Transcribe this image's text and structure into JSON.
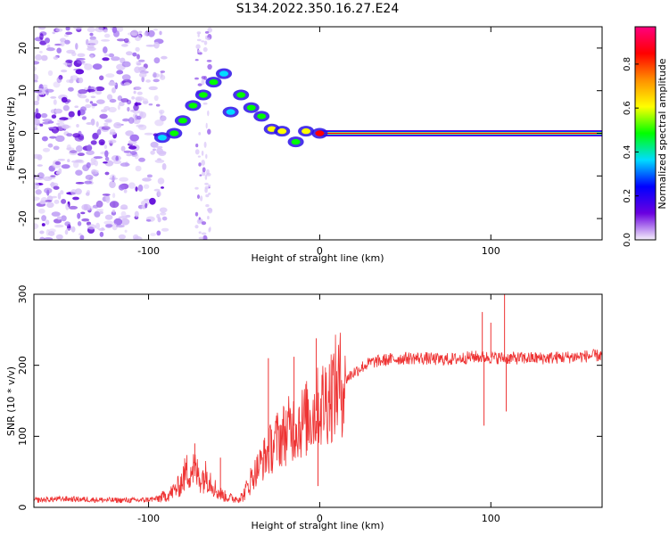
{
  "title": "S134.2022.350.16.27.E24",
  "chart_data": [
    {
      "type": "heatmap",
      "xlabel": "Height of straight line (km)",
      "ylabel": "Frequency (Hz)",
      "xlim": [
        -167,
        165
      ],
      "ylim": [
        -25,
        25
      ],
      "x_ticks": [
        -100,
        0,
        100
      ],
      "x_tick_labels": [
        "-100",
        "0",
        "100"
      ],
      "y_ticks": [
        20,
        10,
        0,
        -10,
        -20
      ],
      "y_tick_labels": [
        "20",
        "10",
        "0",
        "-10",
        "-20"
      ],
      "colorbar": {
        "label": "Normalized spectral amplitude",
        "range": [
          0,
          0.97
        ],
        "ticks": [
          0.0,
          0.2,
          0.4,
          0.6,
          0.8
        ],
        "tick_labels": [
          "0.0",
          "0.2",
          "0.4",
          "0.6",
          "0.8"
        ],
        "colormap": [
          "#f5f0fb",
          "#6a00e0",
          "#0000ff",
          "#00dcff",
          "#00ff00",
          "#ffff00",
          "#ff9000",
          "#ff0000",
          "#ff007f"
        ]
      },
      "features": {
        "noise_region": {
          "x": [
            -167,
            -90
          ],
          "freq": [
            -25,
            25
          ],
          "amplitude": 0.15
        },
        "noise_strip": {
          "x": [
            -72,
            -64
          ],
          "freq": [
            -25,
            25
          ],
          "amplitude": 0.1
        },
        "ridge": [
          {
            "x": -92,
            "freq": -1.0,
            "amplitude": 0.35
          },
          {
            "x": -85,
            "freq": 0.0,
            "amplitude": 0.45
          },
          {
            "x": -80,
            "freq": 3.0,
            "amplitude": 0.45
          },
          {
            "x": -74,
            "freq": 6.5,
            "amplitude": 0.5
          },
          {
            "x": -68,
            "freq": 9.0,
            "amplitude": 0.45
          },
          {
            "x": -62,
            "freq": 12.0,
            "amplitude": 0.5
          },
          {
            "x": -56,
            "freq": 14.0,
            "amplitude": 0.35
          },
          {
            "x": -52,
            "freq": 5.0,
            "amplitude": 0.35
          },
          {
            "x": -46,
            "freq": 9.0,
            "amplitude": 0.45
          },
          {
            "x": -40,
            "freq": 6.0,
            "amplitude": 0.5
          },
          {
            "x": -34,
            "freq": 4.0,
            "amplitude": 0.5
          },
          {
            "x": -28,
            "freq": 1.0,
            "amplitude": 0.6
          },
          {
            "x": -22,
            "freq": 0.5,
            "amplitude": 0.55
          },
          {
            "x": -14,
            "freq": -2.0,
            "amplitude": 0.5
          },
          {
            "x": -8,
            "freq": 0.5,
            "amplitude": 0.6
          },
          {
            "x": 0,
            "freq": 0.0,
            "amplitude": 0.8
          }
        ],
        "tone": {
          "x": [
            0,
            165
          ],
          "freq": 0.0,
          "amplitude": 0.95
        }
      }
    },
    {
      "type": "line",
      "xlabel": "Height of straight line (km)",
      "ylabel": "SNR (10 * v/v)",
      "xlim": [
        -167,
        165
      ],
      "ylim": [
        0,
        300
      ],
      "x_ticks": [
        -100,
        0,
        100
      ],
      "x_tick_labels": [
        "-100",
        "0",
        "100"
      ],
      "y_ticks": [
        0,
        100,
        200,
        300
      ],
      "y_tick_labels": [
        "0",
        "100",
        "200",
        "300"
      ],
      "series": [
        {
          "color": "#ee3333",
          "points": [
            [
              -167,
              10
            ],
            [
              -150,
              12
            ],
            [
              -135,
              11
            ],
            [
              -120,
              10
            ],
            [
              -105,
              10
            ],
            [
              -95,
              12
            ],
            [
              -88,
              18
            ],
            [
              -82,
              30
            ],
            [
              -78,
              50
            ],
            [
              -74,
              55
            ],
            [
              -70,
              42
            ],
            [
              -65,
              45
            ],
            [
              -60,
              22
            ],
            [
              -55,
              15
            ],
            [
              -50,
              12
            ],
            [
              -45,
              15
            ],
            [
              -40,
              40
            ],
            [
              -35,
              60
            ],
            [
              -30,
              78
            ],
            [
              -25,
              95
            ],
            [
              -20,
              105
            ],
            [
              -15,
              115
            ],
            [
              -10,
              120
            ],
            [
              -5,
              130
            ],
            [
              0,
              140
            ],
            [
              5,
              158
            ],
            [
              10,
              170
            ],
            [
              15,
              180
            ],
            [
              20,
              190
            ],
            [
              25,
              198
            ],
            [
              30,
              204
            ],
            [
              40,
              208
            ],
            [
              50,
              210
            ],
            [
              60,
              210
            ],
            [
              70,
              208
            ],
            [
              80,
              209
            ],
            [
              90,
              212
            ],
            [
              100,
              211
            ],
            [
              110,
              210
            ],
            [
              120,
              210
            ],
            [
              130,
              210
            ],
            [
              140,
              211
            ],
            [
              150,
              212
            ],
            [
              165,
              214
            ]
          ],
          "spikes": [
            [
              -73,
              90
            ],
            [
              -58,
              70
            ],
            [
              -30,
              210
            ],
            [
              -15,
              212
            ],
            [
              -12,
              140
            ],
            [
              -2,
              238
            ],
            [
              -1,
              30
            ],
            [
              95,
              275
            ],
            [
              96,
              115
            ],
            [
              100,
              260
            ],
            [
              108,
              300
            ],
            [
              109,
              135
            ]
          ]
        }
      ]
    }
  ]
}
